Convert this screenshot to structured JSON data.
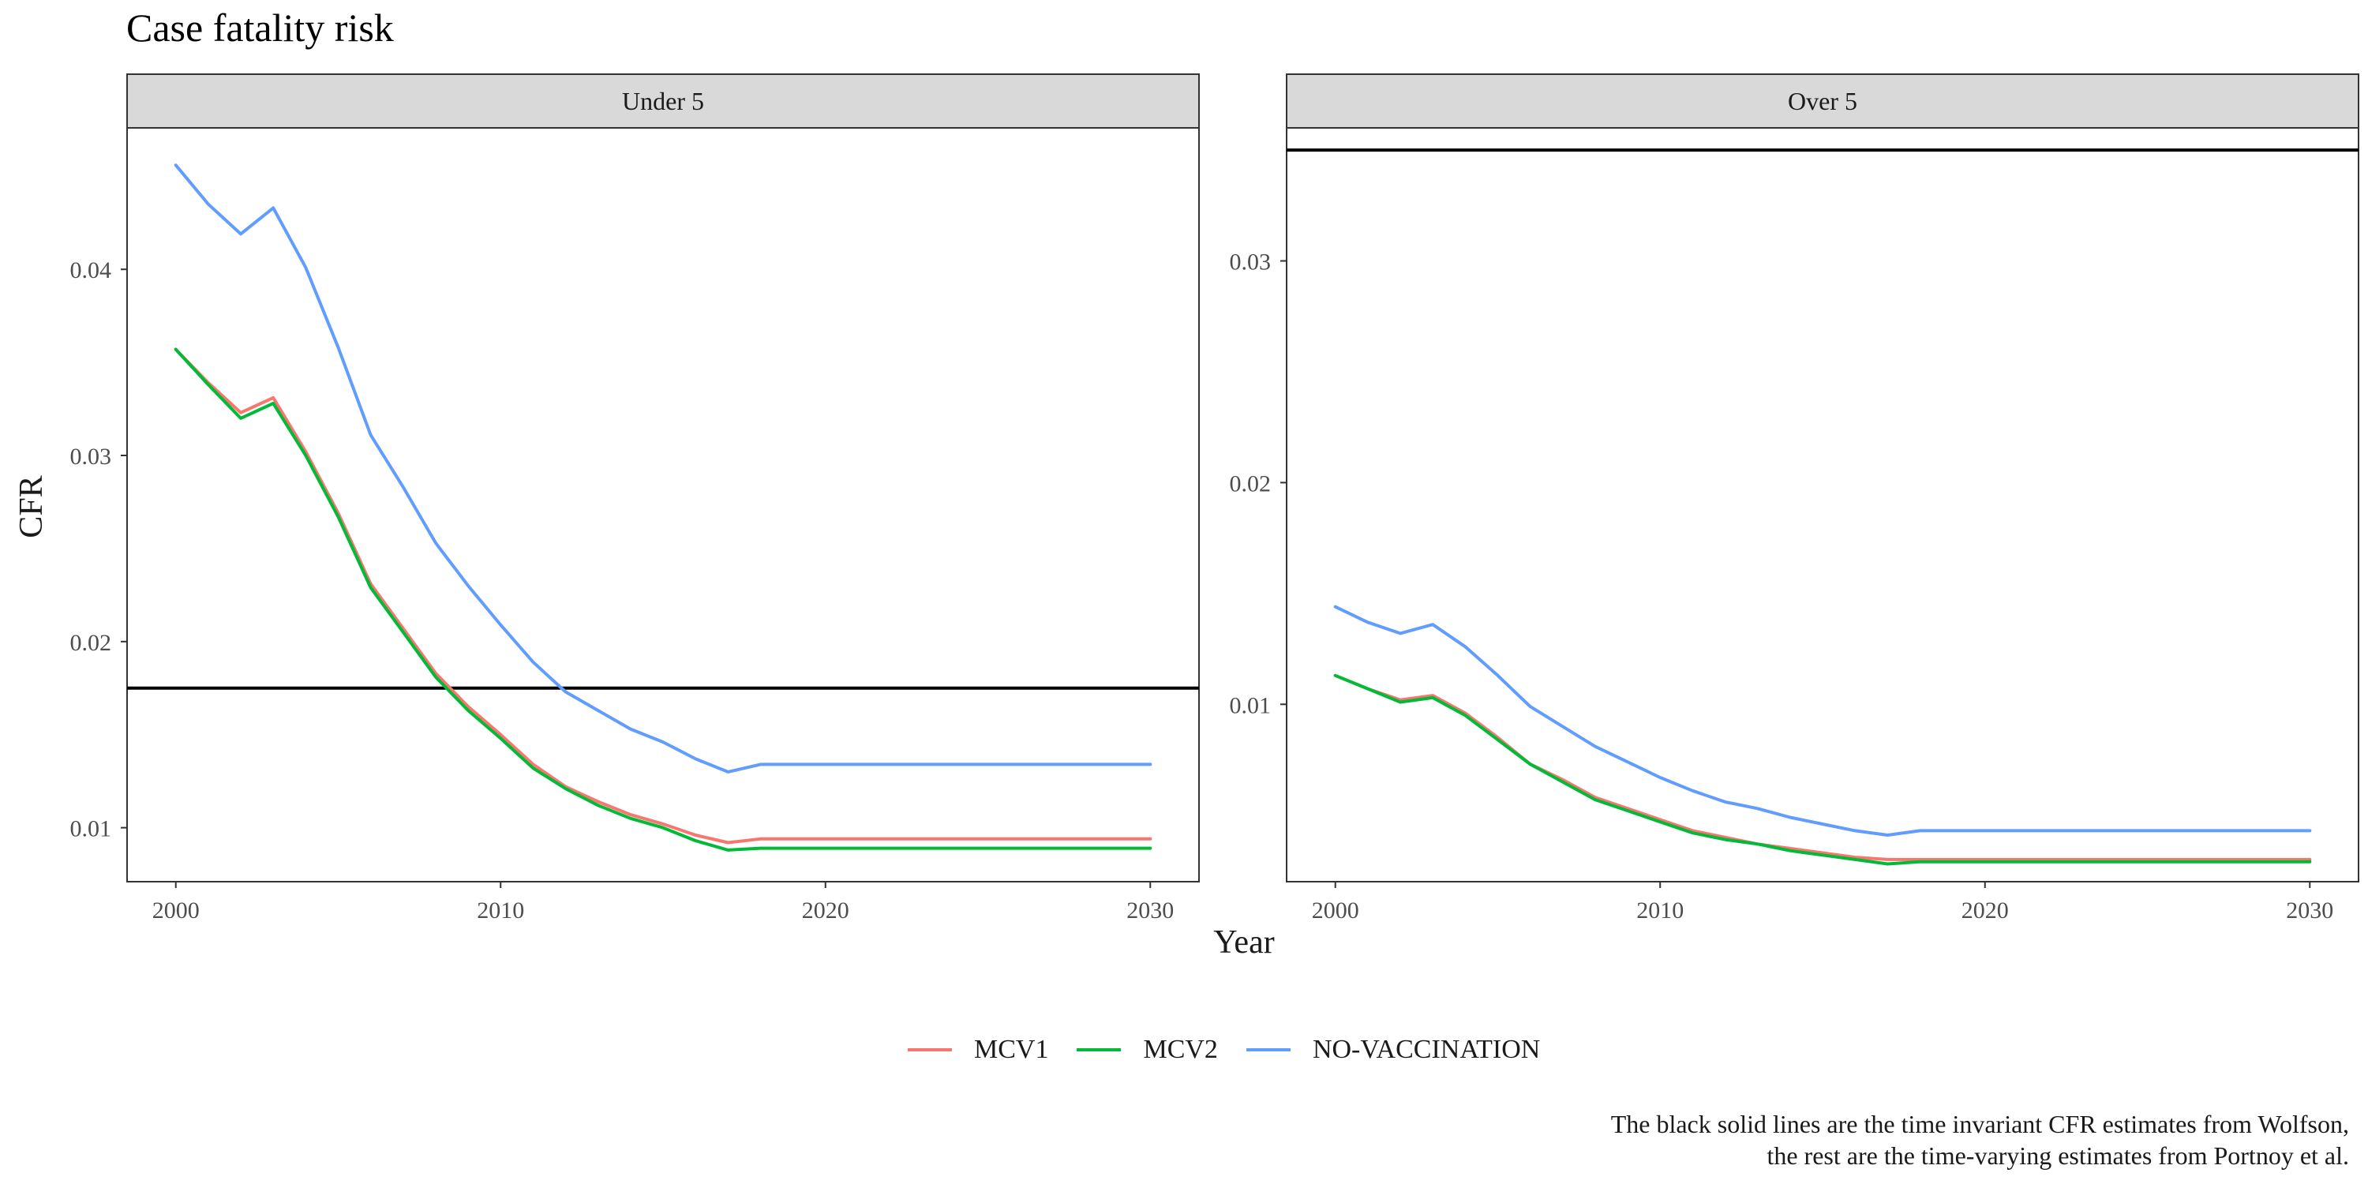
{
  "title": "Case fatality risk",
  "caption": {
    "line1": "The black solid lines are the time invariant CFR estimates from Wolfson,",
    "line2": "the rest are the time-varying estimates from Portnoy et al."
  },
  "colors": {
    "MCV1": "#F8766D",
    "MCV2": "#00BA38",
    "NO-VACCINATION": "#619CFF",
    "reference": "#000000",
    "strip": "#d9d9d9"
  },
  "chart_data": {
    "type": "line",
    "title": "Case fatality risk",
    "xlabel": "Year",
    "ylabel": "CFR",
    "legend_position": "bottom",
    "legend": [
      "MCV1",
      "MCV2",
      "NO-VACCINATION"
    ],
    "facets": [
      {
        "label": "Under 5",
        "xlim": [
          1998.5,
          2031.5
        ],
        "ylim": [
          0.0071,
          0.0476
        ],
        "x_ticks": [
          2000,
          2010,
          2020,
          2030
        ],
        "y_ticks": [
          0.01,
          0.02,
          0.03,
          0.04
        ],
        "y_tick_labels": [
          "0.01",
          "0.02",
          "0.03",
          "0.04"
        ],
        "reference_line": 0.0175,
        "x": [
          2000,
          2001,
          2002,
          2003,
          2004,
          2005,
          2006,
          2007,
          2008,
          2009,
          2010,
          2011,
          2012,
          2013,
          2014,
          2015,
          2016,
          2017,
          2018,
          2019,
          2020,
          2021,
          2022,
          2023,
          2024,
          2025,
          2026,
          2027,
          2028,
          2029,
          2030
        ],
        "series": [
          {
            "name": "MCV1",
            "values": [
              0.0357,
              0.0339,
              0.0323,
              0.0331,
              0.0302,
              0.0269,
              0.0231,
              0.0207,
              0.0183,
              0.0165,
              0.015,
              0.0134,
              0.0122,
              0.0114,
              0.0107,
              0.0102,
              0.0096,
              0.0092,
              0.0094,
              0.0094,
              0.0094,
              0.0094,
              0.0094,
              0.0094,
              0.0094,
              0.0094,
              0.0094,
              0.0094,
              0.0094,
              0.0094,
              0.0094
            ]
          },
          {
            "name": "MCV2",
            "values": [
              0.0357,
              0.0338,
              0.032,
              0.0328,
              0.03,
              0.0267,
              0.0229,
              0.0205,
              0.0181,
              0.0163,
              0.0148,
              0.0132,
              0.0121,
              0.0112,
              0.0105,
              0.01,
              0.0093,
              0.0088,
              0.0089,
              0.0089,
              0.0089,
              0.0089,
              0.0089,
              0.0089,
              0.0089,
              0.0089,
              0.0089,
              0.0089,
              0.0089,
              0.0089,
              0.0089
            ]
          },
          {
            "name": "NO-VACCINATION",
            "values": [
              0.0456,
              0.0435,
              0.0419,
              0.0433,
              0.0401,
              0.0358,
              0.0311,
              0.0283,
              0.0253,
              0.023,
              0.0209,
              0.0189,
              0.0173,
              0.0163,
              0.0153,
              0.0146,
              0.0137,
              0.013,
              0.0134,
              0.0134,
              0.0134,
              0.0134,
              0.0134,
              0.0134,
              0.0134,
              0.0134,
              0.0134,
              0.0134,
              0.0134,
              0.0134,
              0.0134
            ]
          }
        ]
      },
      {
        "label": "Over 5",
        "xlim": [
          1998.5,
          2031.5
        ],
        "ylim": [
          0.002,
          0.036
        ],
        "x_ticks": [
          2000,
          2010,
          2020,
          2030
        ],
        "y_ticks": [
          0.01,
          0.02,
          0.03
        ],
        "y_tick_labels": [
          "0.01",
          "0.02",
          "0.03"
        ],
        "reference_line": 0.035,
        "x": [
          2000,
          2001,
          2002,
          2003,
          2004,
          2005,
          2006,
          2007,
          2008,
          2009,
          2010,
          2011,
          2012,
          2013,
          2014,
          2015,
          2016,
          2017,
          2018,
          2019,
          2020,
          2021,
          2022,
          2023,
          2024,
          2025,
          2026,
          2027,
          2028,
          2029,
          2030
        ],
        "series": [
          {
            "name": "MCV1",
            "values": [
              0.0113,
              0.0107,
              0.0102,
              0.0104,
              0.0096,
              0.0085,
              0.0073,
              0.0066,
              0.0058,
              0.0053,
              0.0048,
              0.0043,
              0.004,
              0.0037,
              0.0035,
              0.0033,
              0.0031,
              0.003,
              0.003,
              0.003,
              0.003,
              0.003,
              0.003,
              0.003,
              0.003,
              0.003,
              0.003,
              0.003,
              0.003,
              0.003,
              0.003
            ]
          },
          {
            "name": "MCV2",
            "values": [
              0.0113,
              0.0107,
              0.0101,
              0.0103,
              0.0095,
              0.0084,
              0.0073,
              0.0065,
              0.0057,
              0.0052,
              0.0047,
              0.0042,
              0.0039,
              0.0037,
              0.0034,
              0.0032,
              0.003,
              0.0028,
              0.0029,
              0.0029,
              0.0029,
              0.0029,
              0.0029,
              0.0029,
              0.0029,
              0.0029,
              0.0029,
              0.0029,
              0.0029,
              0.0029,
              0.0029
            ]
          },
          {
            "name": "NO-VACCINATION",
            "values": [
              0.0144,
              0.0137,
              0.0132,
              0.0136,
              0.0126,
              0.0113,
              0.0099,
              0.009,
              0.0081,
              0.0074,
              0.0067,
              0.0061,
              0.0056,
              0.0053,
              0.0049,
              0.0046,
              0.0043,
              0.0041,
              0.0043,
              0.0043,
              0.0043,
              0.0043,
              0.0043,
              0.0043,
              0.0043,
              0.0043,
              0.0043,
              0.0043,
              0.0043,
              0.0043,
              0.0043
            ]
          }
        ]
      }
    ]
  }
}
